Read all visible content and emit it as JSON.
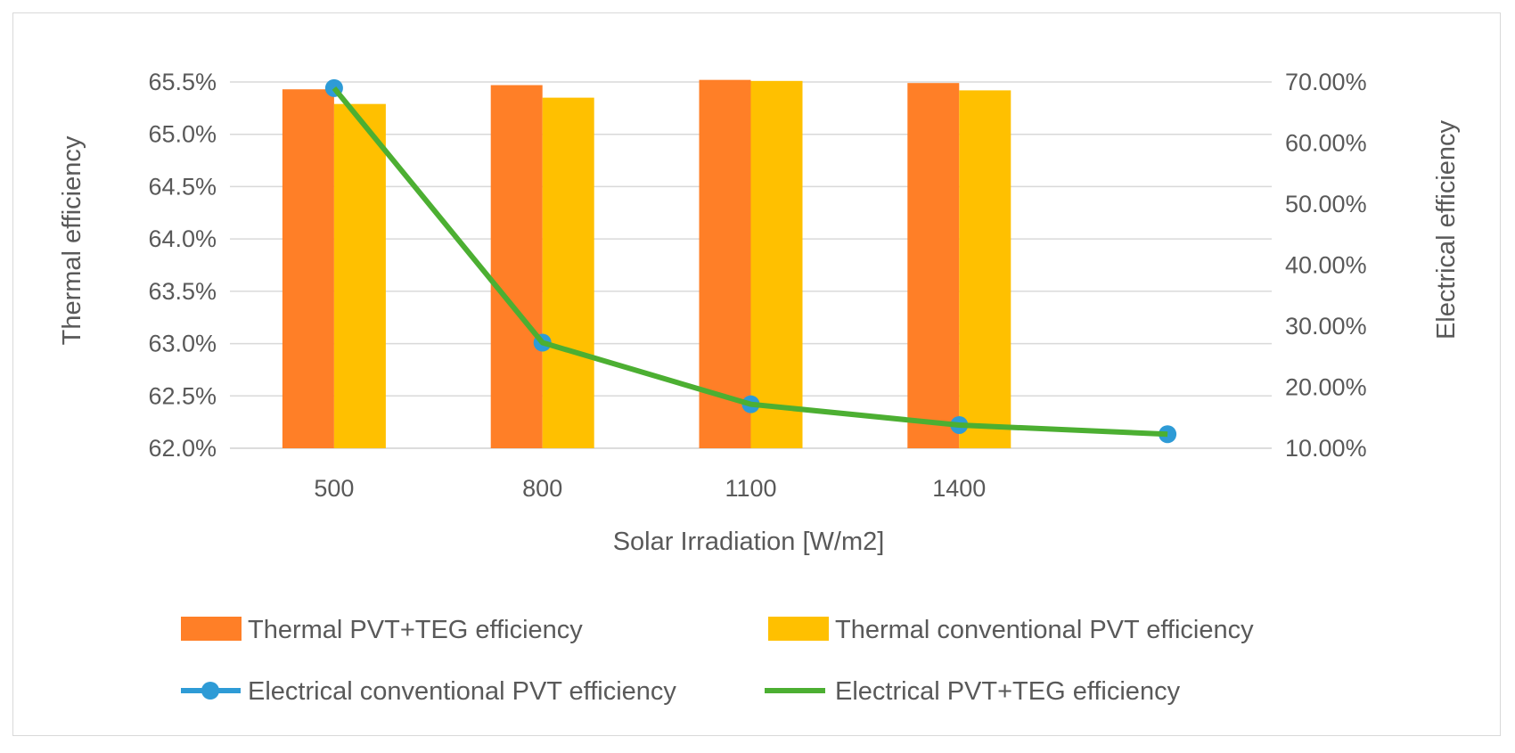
{
  "chart_data": {
    "type": "bar",
    "title": "",
    "categories": [
      "500",
      "800",
      "1100",
      "1400",
      ""
    ],
    "xlabel": "Solar Irradiation [W/m2]",
    "ylabel": "Thermal efficiency",
    "y2label": "Electrical efficiency",
    "ylim": [
      62.0,
      65.5
    ],
    "y2lim": [
      10.0,
      70.0
    ],
    "yticks": [
      "62.0%",
      "62.5%",
      "63.0%",
      "63.5%",
      "64.0%",
      "64.5%",
      "65.0%",
      "65.5%"
    ],
    "y2ticks": [
      "10.00%",
      "20.00%",
      "30.00%",
      "40.00%",
      "50.00%",
      "60.00%",
      "70.00%"
    ],
    "grid": true,
    "legend_position": "bottom",
    "series": [
      {
        "name": "Thermal PVT+TEG efficiency",
        "kind": "bar",
        "axis": "left",
        "color": "#FF7F27",
        "values": [
          65.43,
          65.47,
          65.52,
          65.49,
          null
        ]
      },
      {
        "name": "Thermal conventional PVT efficiency",
        "kind": "bar",
        "axis": "left",
        "color": "#FFC000",
        "values": [
          65.29,
          65.35,
          65.51,
          65.42,
          null
        ]
      },
      {
        "name": "Electrical conventional PVT efficiency",
        "kind": "line-marker",
        "axis": "right",
        "color": "#2E9BD6",
        "values": [
          69.0,
          27.3,
          17.2,
          13.8,
          12.3
        ]
      },
      {
        "name": "Electrical PVT+TEG efficiency",
        "kind": "line",
        "axis": "right",
        "color": "#4CAF32",
        "values": [
          69.0,
          27.3,
          17.2,
          13.8,
          12.3
        ]
      }
    ]
  }
}
